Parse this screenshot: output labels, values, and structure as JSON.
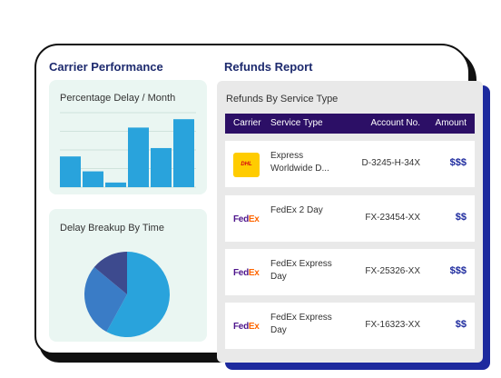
{
  "carrier_performance": {
    "title": "Carrier Performance",
    "delay_chart": {
      "title": "Percentage Delay / Month"
    },
    "breakup_chart": {
      "title": "Delay Breakup By Time"
    }
  },
  "refunds": {
    "title": "Refunds Report",
    "subtitle": "Refunds By Service Type",
    "columns": {
      "carrier": "Carrier",
      "service": "Service Type",
      "account": "Account No.",
      "amount": "Amount"
    },
    "rows": [
      {
        "carrier_logo": "DHL",
        "service": "Express Worldwide D...",
        "account": "D-3245-H-34X",
        "amount": "$$$"
      },
      {
        "carrier_logo_a": "Fed",
        "carrier_logo_b": "Ex",
        "service": "FedEx 2 Day",
        "account": "FX-23454-XX",
        "amount": "$$"
      },
      {
        "carrier_logo_a": "Fed",
        "carrier_logo_b": "Ex",
        "service": "FedEx Express Day",
        "account": "FX-25326-XX",
        "amount": "$$$"
      },
      {
        "carrier_logo_a": "Fed",
        "carrier_logo_b": "Ex",
        "service": "FedEx Express Day",
        "account": "FX-16323-XX",
        "amount": "$$"
      }
    ]
  },
  "chart_data": [
    {
      "type": "bar",
      "title": "Percentage Delay / Month",
      "values": [
        33,
        17,
        5,
        64,
        42,
        73
      ],
      "ylim": [
        0,
        80
      ],
      "grid": true,
      "colors": [
        "#29a3dc"
      ]
    },
    {
      "type": "pie",
      "title": "Delay Breakup By Time",
      "values": [
        58,
        28,
        14
      ],
      "colors": [
        "#29a3dc",
        "#3a7cc6",
        "#3d4a8e"
      ]
    }
  ]
}
